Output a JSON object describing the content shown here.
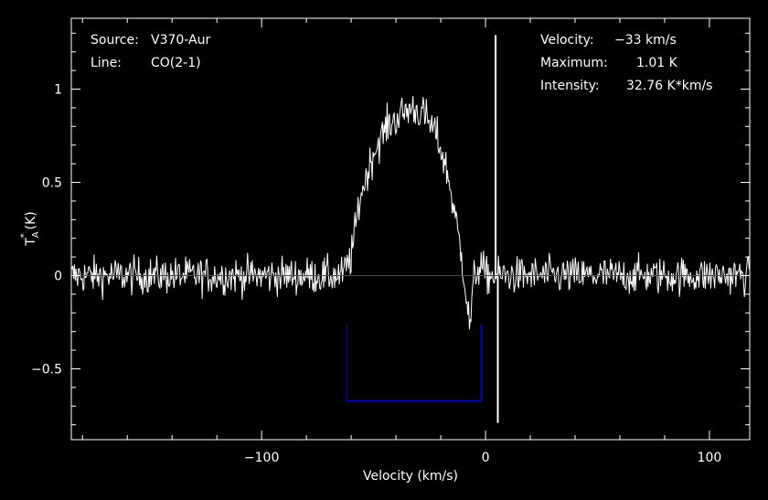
{
  "info_left": {
    "source_label": "Source:",
    "source_value": "V370-Aur",
    "line_label": "Line:",
    "line_value": "CO(2-1)"
  },
  "info_right": {
    "velocity_label": "Velocity:",
    "velocity_value": "−33 km/s",
    "maximum_label": "Maximum:",
    "maximum_value": "1.01 K",
    "intensity_label": "Intensity:",
    "intensity_value": "32.76 K*km/s"
  },
  "chart_data": {
    "type": "line",
    "xlabel": "Velocity (km/s)",
    "ylabel": "T_A^* (K)",
    "xlim": [
      -185,
      118
    ],
    "ylim": [
      -0.88,
      1.38
    ],
    "xticks": [
      -100,
      0,
      100
    ],
    "xtick_labels": [
      "−100",
      "0",
      "100"
    ],
    "yticks": [
      -0.5,
      0,
      0.5,
      1
    ],
    "ytick_labels": [
      "−0.5",
      "0",
      "0.5",
      "1"
    ],
    "grid": false,
    "colors": {
      "spectrum": "#ffffff",
      "baseline": "#ff0000",
      "window": "#0000ff",
      "background": "#000000"
    },
    "baseline_y": 0,
    "integration_window": {
      "x_start": -62,
      "x_end": -2,
      "y_top": -0.26,
      "y_bottom": -0.67
    },
    "spectrum": {
      "name": "CO(2-1)",
      "noise_rms": 0.07,
      "profile_points": [
        [
          -185,
          0
        ],
        [
          -64,
          0
        ],
        [
          -60,
          0.1
        ],
        [
          -56,
          0.42
        ],
        [
          -50,
          0.66
        ],
        [
          -44,
          0.8
        ],
        [
          -38,
          0.86
        ],
        [
          -33,
          0.9
        ],
        [
          -28,
          0.87
        ],
        [
          -22,
          0.76
        ],
        [
          -17,
          0.55
        ],
        [
          -13,
          0.28
        ],
        [
          -10,
          0.05
        ],
        [
          -7,
          -0.28
        ],
        [
          -5,
          0.0
        ],
        [
          -2,
          0.06
        ],
        [
          0,
          0.0
        ],
        [
          118,
          0
        ]
      ],
      "spikes": [
        {
          "x": 4.5,
          "y": 1.29
        },
        {
          "x": 5.5,
          "y": -0.79
        }
      ]
    }
  }
}
